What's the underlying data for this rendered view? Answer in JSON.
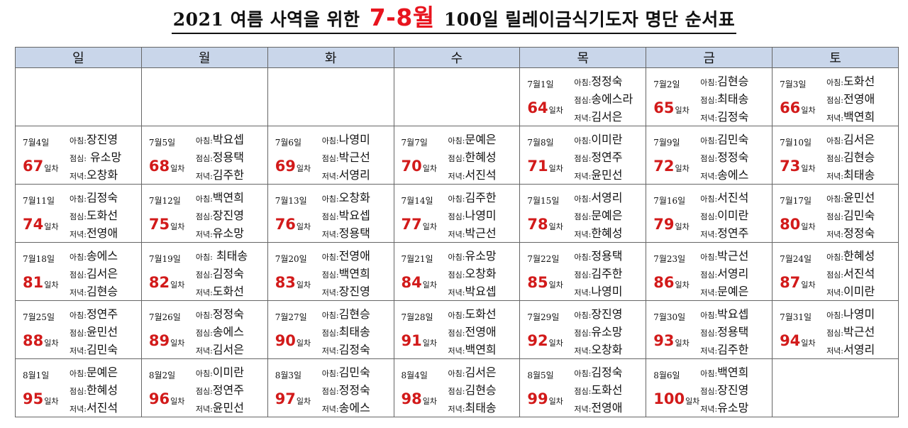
{
  "title": {
    "pre": "2021 여름 사역을 위한",
    "highlight": "7-8월",
    "post": "100일 릴레이금식기도자 명단 순서표"
  },
  "labels": {
    "morning": "아침:",
    "lunch": "점심:",
    "evening": "저녁:",
    "day_suffix": "일차"
  },
  "colors": {
    "highlight": "#e8141e",
    "day_number": "#d21a1a",
    "header_bg": "#c9d6ea"
  },
  "weekdays": [
    "일",
    "월",
    "화",
    "수",
    "목",
    "금",
    "토"
  ],
  "weeks": [
    [
      null,
      null,
      null,
      null,
      {
        "date": "7월1일",
        "day": "64",
        "morning": "정정숙",
        "lunch": "송에스라",
        "evening": "김서은"
      },
      {
        "date": "7월2일",
        "day": "65",
        "morning": "김현승",
        "lunch": "최태송",
        "evening": "김정숙"
      },
      {
        "date": "7월3일",
        "day": "66",
        "morning": "도화선",
        "lunch": "전영애",
        "evening": "백연희"
      }
    ],
    [
      {
        "date": "7월4일",
        "day": "67",
        "morning": "장진영",
        "lunch": " 유소망",
        "evening": "오창화"
      },
      {
        "date": "7월5일",
        "day": "68",
        "morning": "박요셉",
        "lunch": "정용택",
        "evening": "김주한"
      },
      {
        "date": "7월6일",
        "day": "69",
        "morning": "나영미",
        "lunch": "박근선",
        "evening": "서영리"
      },
      {
        "date": "7월7일",
        "day": "70",
        "morning": "문예은",
        "lunch": "한혜성",
        "evening": "서진석"
      },
      {
        "date": "7월8일",
        "day": "71",
        "morning": "이미란",
        "lunch": "정연주",
        "evening": "윤민선"
      },
      {
        "date": "7월9일",
        "day": "72",
        "morning": "김민숙",
        "lunch": "정정숙",
        "evening": "송에스"
      },
      {
        "date": "7월10일",
        "day": "73",
        "morning": "김서은",
        "lunch": "김현승",
        "evening": "최태송"
      }
    ],
    [
      {
        "date": "7월11일",
        "day": "74",
        "morning": "김정숙",
        "lunch": "도화선",
        "evening": "전영애"
      },
      {
        "date": "7월12일",
        "day": "75",
        "morning": "백연희",
        "lunch": "장진영",
        "evening": "유소망"
      },
      {
        "date": "7월13일",
        "day": "76",
        "morning": "오창화",
        "lunch": "박요셉",
        "evening": "정용택"
      },
      {
        "date": "7월14일",
        "day": "77",
        "morning": "김주한",
        "lunch": "나영미",
        "evening": "박근선"
      },
      {
        "date": "7월15일",
        "day": "78",
        "morning": "서영리",
        "lunch": "문예은",
        "evening": "한혜성"
      },
      {
        "date": "7월16일",
        "day": "79",
        "morning": "서진석",
        "lunch": "이미란",
        "evening": "정연주"
      },
      {
        "date": "7월17일",
        "day": "80",
        "morning": "윤민선",
        "lunch": "김민숙",
        "evening": "정정숙"
      }
    ],
    [
      {
        "date": "7월18일",
        "day": "81",
        "morning": "송에스",
        "lunch": "김서은",
        "evening": "김현승"
      },
      {
        "date": "7월19일",
        "day": "82",
        "morning": " 최태송",
        "lunch": "김정숙",
        "evening": "도화선"
      },
      {
        "date": "7월20일",
        "day": "83",
        "morning": "전영애",
        "lunch": "백연희",
        "evening": "장진영"
      },
      {
        "date": "7월21일",
        "day": "84",
        "morning": "유소망",
        "lunch": "오창화",
        "evening": "박요셉"
      },
      {
        "date": "7월22일",
        "day": "85",
        "morning": "정용택",
        "lunch": "김주한",
        "evening": "나영미"
      },
      {
        "date": "7월23일",
        "day": "86",
        "morning": "박근선",
        "lunch": "서영리",
        "evening": "문예은"
      },
      {
        "date": "7월24일",
        "day": "87",
        "morning": "한혜성",
        "lunch": "서진석",
        "evening": "이미란"
      }
    ],
    [
      {
        "date": "7월25일",
        "day": "88",
        "morning": "정연주",
        "lunch": "윤민선",
        "evening": "김민숙"
      },
      {
        "date": "7월26일",
        "day": "89",
        "morning": "정정숙",
        "lunch": "송에스",
        "evening": "김서은"
      },
      {
        "date": "7월27일",
        "day": "90",
        "morning": "김현승",
        "lunch": "최태송",
        "evening": "김정숙"
      },
      {
        "date": "7월28일",
        "day": "91",
        "morning": "도화선",
        "lunch": "전영애",
        "evening": "백연희"
      },
      {
        "date": "7월29일",
        "day": "92",
        "morning": "장진영",
        "lunch": "유소망",
        "evening": "오창화"
      },
      {
        "date": "7월30일",
        "day": "93",
        "morning": "박요셉",
        "lunch": "정용택",
        "evening": "김주한"
      },
      {
        "date": "7월31일",
        "day": "94",
        "morning": "나영미",
        "lunch": "박근선",
        "evening": "서영리"
      }
    ],
    [
      {
        "date": "8월1일",
        "day": "95",
        "morning": "문예은",
        "lunch": "한혜성",
        "evening": "서진석"
      },
      {
        "date": "8월2일",
        "day": "96",
        "morning": "이미란",
        "lunch": "정연주",
        "evening": "윤민선"
      },
      {
        "date": "8월3일",
        "day": "97",
        "morning": "김민숙",
        "lunch": "정정숙",
        "evening": "송에스"
      },
      {
        "date": "8월4일",
        "day": "98",
        "morning": "김서은",
        "lunch": "김현승",
        "evening": "최태송"
      },
      {
        "date": "8월5일",
        "day": "99",
        "morning": "김정숙",
        "lunch": "도화선",
        "evening": "전영애"
      },
      {
        "date": "8월6일",
        "day": "100",
        "morning": "백연희",
        "lunch": "장진영",
        "evening": "유소망"
      },
      null
    ]
  ]
}
